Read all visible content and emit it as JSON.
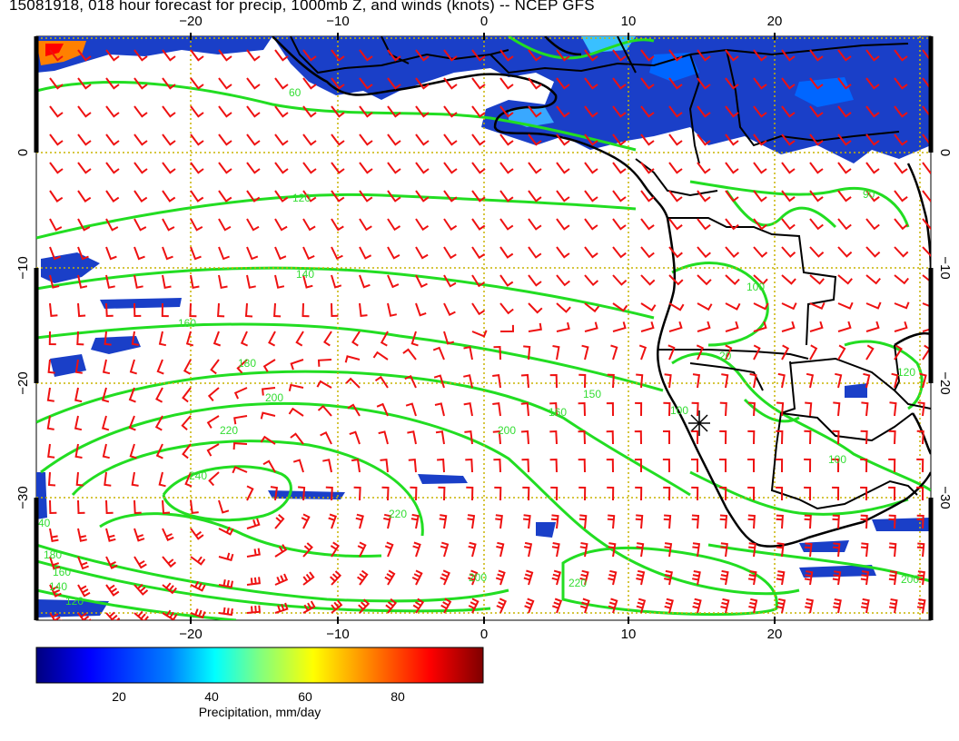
{
  "header": {
    "title": "15081918, 018 hour forecast for precip, 1000mb Z, and winds (knots) -- NCEP GFS"
  },
  "map": {
    "lon_range": [
      -30,
      31
    ],
    "lat_range": [
      9,
      -40
    ],
    "lon_ticks": [
      -20,
      -10,
      0,
      10,
      20
    ],
    "lat_ticks": [
      0,
      -10,
      -20,
      -30
    ],
    "lon_tick_labels": [
      "−20",
      "−10",
      "0",
      "10",
      "20"
    ],
    "lat_tick_labels": [
      "0",
      "−10",
      "−20",
      "−30"
    ],
    "grid_color": "#c8b400",
    "contour_color": "#22dd22",
    "barb_color": "#ee1111",
    "coast_color": "#000000",
    "contour_labels": [
      "60",
      "120",
      "140",
      "160",
      "180",
      "200",
      "220",
      "240",
      "220",
      "200",
      "200",
      "180",
      "160",
      "140",
      "120",
      "160",
      "150",
      "120",
      "100",
      "100",
      "20",
      "200",
      "220",
      "90",
      "100",
      "40"
    ]
  },
  "colorbar": {
    "label": "Precipitation, mm/day",
    "ticks": [
      "20",
      "40",
      "60",
      "80"
    ],
    "tick_values": [
      20,
      40,
      60,
      80
    ],
    "range": [
      0,
      100
    ],
    "colors": [
      "#00007f",
      "#0000ff",
      "#0080ff",
      "#00ffff",
      "#80ff80",
      "#ffff00",
      "#ff8000",
      "#ff0000",
      "#7f0000"
    ]
  }
}
